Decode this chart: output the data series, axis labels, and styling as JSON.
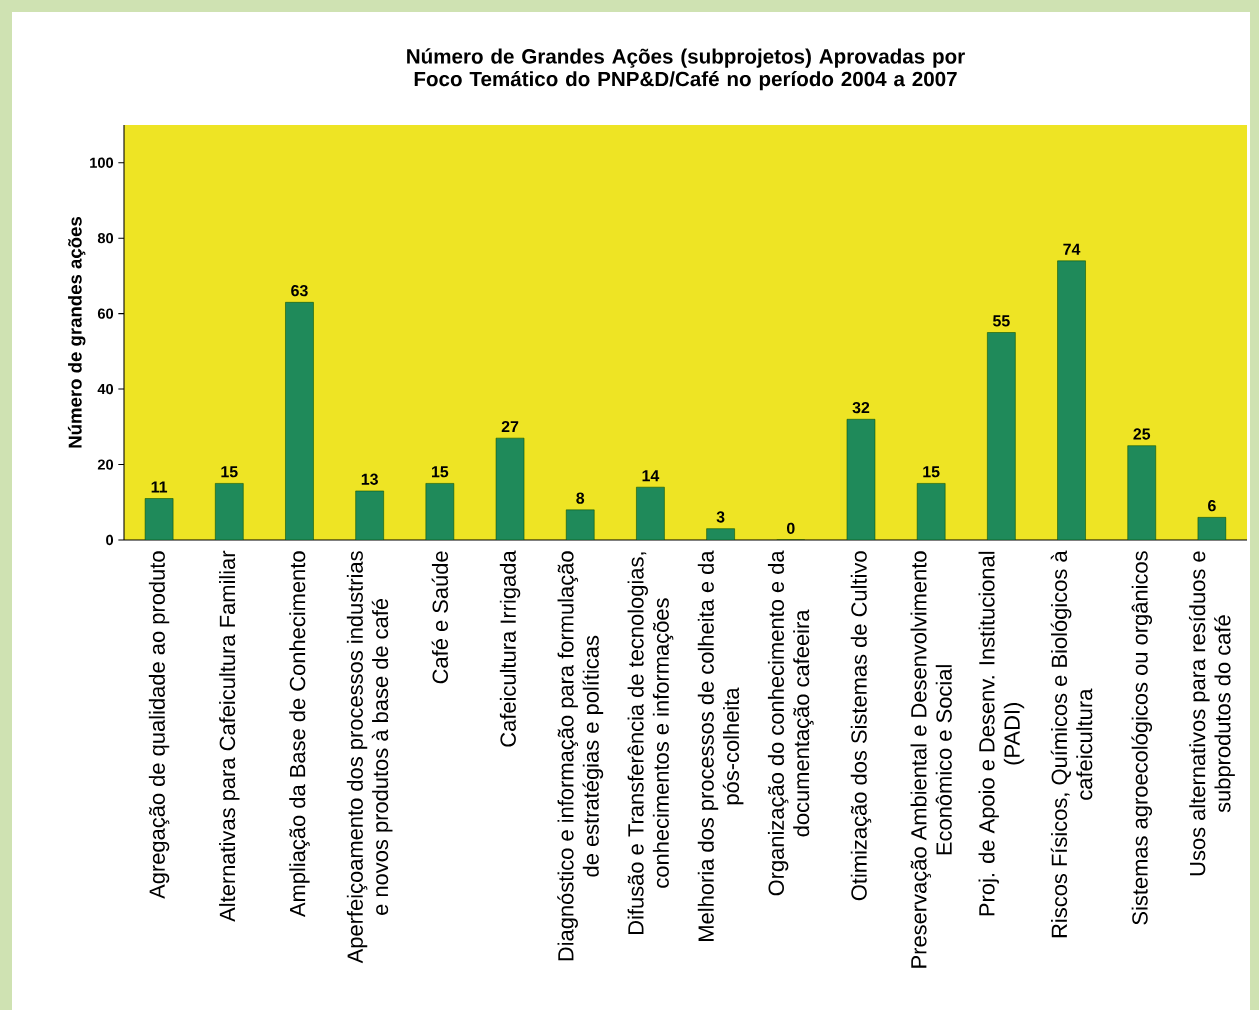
{
  "chart_data": {
    "type": "bar",
    "title": "Número de Grandes Ações (subprojetos) Aprovadas por Foco Temático do PNP&D/Café no período 2004 a 2007",
    "ylabel": "Número de grandes ações",
    "categories": [
      "Agregação de qualidade ao produto",
      "Alternativas para Cafeicultura Familiar",
      "Ampliação da Base de Conhecimento",
      "Aperfeiçoamento dos processos industrias e novos produtos à base de café",
      "Café e Saúde",
      "Cafeicultura Irrigada",
      "Diagnóstico e informação para formulação de estratégias e políticas",
      "Difusão e Transferência de tecnologias, conhecimentos e informações",
      "Melhoria dos processos de colheita e da pós-colheita",
      "Organização do conhecimento e da documentação cafeeira",
      "Otimização dos Sistemas de Cultivo",
      "Preservação Ambiental e Desenvolvimento Econômico e Social",
      "Proj. de Apoio e Desenv. Institucional (PADI)",
      "Riscos Físicos, Químicos e Biológicos à cafeicultura",
      "Sistemas agroecológicos ou orgânicos",
      "Usos alternativos para resíduos e subprodutos do café"
    ],
    "values": [
      11,
      15,
      63,
      13,
      15,
      27,
      8,
      14,
      3,
      0,
      32,
      15,
      55,
      74,
      25,
      6
    ],
    "color": "#1f8a5a",
    "ylim": [
      0,
      110
    ],
    "yticks": [
      0,
      20,
      40,
      60,
      80,
      100
    ],
    "data_labels": true
  }
}
